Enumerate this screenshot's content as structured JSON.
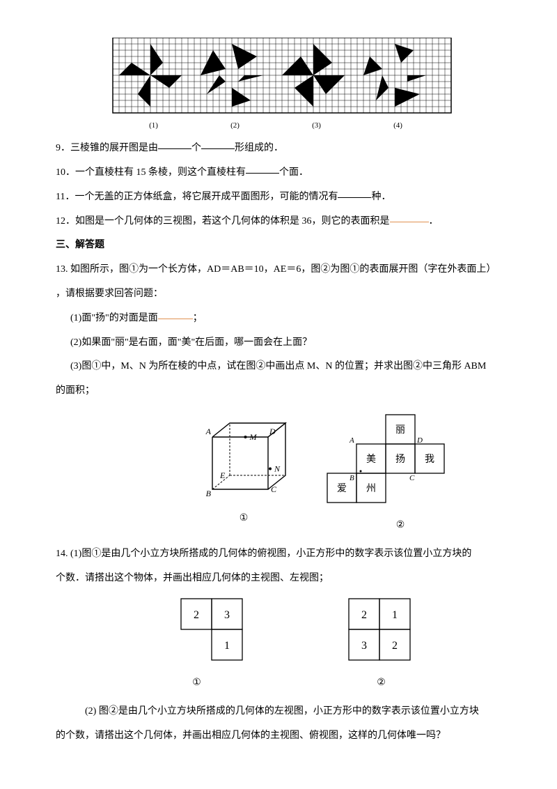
{
  "grid": {
    "rows": 12,
    "cols_total": 54,
    "cell": 9,
    "group_cols": 13,
    "labels": [
      "(1)",
      "(2)",
      "(3)",
      "(4)"
    ],
    "shapes": [
      [
        [
          6,
          1
        ],
        [
          6,
          6
        ],
        [
          8,
          4
        ],
        [
          6,
          6
        ],
        [
          11,
          6
        ],
        [
          9,
          8
        ],
        [
          6,
          6
        ],
        [
          6,
          11
        ],
        [
          4,
          9
        ],
        [
          6,
          6
        ],
        [
          1,
          6
        ],
        [
          3,
          4
        ]
      ],
      [
        [
          6,
          1
        ],
        [
          7,
          5
        ],
        [
          10,
          3
        ],
        [
          8,
          6
        ],
        [
          11,
          6
        ],
        [
          7,
          7
        ],
        [
          9,
          10
        ],
        [
          6,
          8
        ],
        [
          6,
          11
        ],
        [
          5,
          7
        ],
        [
          2,
          9
        ],
        [
          4,
          6
        ],
        [
          1,
          6
        ],
        [
          5,
          5
        ],
        [
          3,
          2
        ],
        [
          6,
          4
        ]
      ],
      [
        [
          6,
          1
        ],
        [
          6,
          6
        ],
        [
          9,
          4
        ],
        [
          6,
          6
        ],
        [
          11,
          6
        ],
        [
          8,
          9
        ],
        [
          6,
          6
        ],
        [
          6,
          11
        ],
        [
          3,
          8
        ],
        [
          6,
          6
        ],
        [
          1,
          6
        ],
        [
          4,
          3
        ]
      ],
      [
        [
          6,
          1
        ],
        [
          7,
          4
        ],
        [
          9,
          2
        ],
        [
          8,
          6
        ],
        [
          11,
          6
        ],
        [
          8,
          7
        ],
        [
          10,
          9
        ],
        [
          6,
          8
        ],
        [
          6,
          11
        ],
        [
          5,
          8
        ],
        [
          3,
          10
        ],
        [
          4,
          6
        ],
        [
          1,
          6
        ],
        [
          4,
          5
        ],
        [
          2,
          3
        ],
        [
          6,
          4
        ]
      ]
    ]
  },
  "q9": {
    "pre": "9．三棱锥的展开图是由",
    "mid": "个",
    "post": "形组成的．"
  },
  "q10": {
    "pre": "10．一个直棱柱有 15 条棱，则这个直棱柱有",
    "post": "个面．"
  },
  "q11": {
    "pre": "11．一个无盖的正方体纸盒，将它展开成平面图形，可能的情况有",
    "post": "种．"
  },
  "q12": {
    "pre": "12．如图是一个几何体的三视图，若这个几何体的体积是 36，则它的表面积是",
    "post": "．"
  },
  "section3": "三、解答题",
  "q13": {
    "head": "13. 如图所示，图①为一个长方体，AD＝AB＝10，AE＝6，图②为图①的表面展开图（字在外表面上）",
    "head2": "，请根据要求回答问题：",
    "p1a": "(1)面\"扬\"的对面是面",
    "p1b": "；",
    "p2": "(2)如果面\"丽\"是右面，面\"美\"在后面，哪一面会在上面？",
    "p3a": "(3)图①中，M、N 为所在棱的中点，试在图②中画出点 M、N 的位置；并求出图②中三角形 ABM",
    "p3b": "的面积；",
    "net_labels": {
      "top": "丽",
      "mid_l": "美",
      "mid_c": "扬",
      "mid_r": "我",
      "bot_l": "爱",
      "bot_c": "州"
    },
    "cube_labels": {
      "A": "A",
      "B": "B",
      "C": "C",
      "D": "D",
      "E": "E",
      "M": "M",
      "N": "N"
    },
    "caps": [
      "①",
      "②"
    ]
  },
  "q14": {
    "p1a": "14. (1)图①是由几个小立方块所搭成的几何体的俯视图，小正方形中的数字表示该位置小立方块的",
    "p1b": "个数．请搭出这个物体，并画出相应几何体的主视图、左视图；",
    "g1": [
      [
        "",
        "2",
        "3"
      ],
      [
        "",
        "",
        "1"
      ]
    ],
    "g2": [
      [
        "2",
        "1"
      ],
      [
        "3",
        "2"
      ]
    ],
    "caps": [
      "①",
      "②"
    ],
    "p2a": "(2) 图②是由几个小立方块所搭成的几何体的左视图，小正方形中的数字表示该位置小立方块",
    "p2b": "的个数，请搭出这个几何体，并画出相应几何体的主视图、俯视图，这样的几何体唯一吗？"
  },
  "colors": {
    "text": "#000000",
    "blank_orange": "#e09050"
  }
}
